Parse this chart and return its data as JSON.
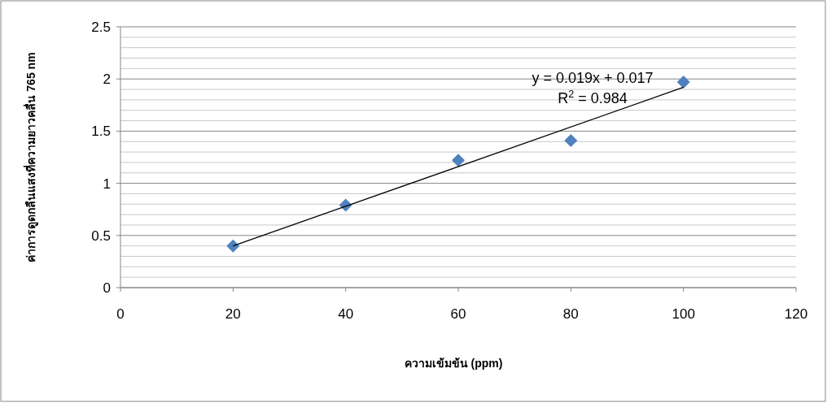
{
  "chart_data": {
    "type": "scatter",
    "xlabel": "ความเข้มข้น (ppm)",
    "ylabel": "ค่าการดูดกลืนแสงที่ความยาวคลื่น 765 nm",
    "x": [
      20,
      40,
      60,
      80,
      100
    ],
    "series": [
      {
        "color": "#4f81bd",
        "marker": "diamond",
        "values": [
          0.4,
          0.79,
          1.22,
          1.41,
          1.97
        ]
      },
      {
        "type": "line",
        "color": "#000000",
        "x": [
          20,
          100
        ],
        "values": [
          0.4,
          1.92
        ]
      }
    ],
    "xlim": [
      0,
      120
    ],
    "xticks": [
      0,
      20,
      40,
      60,
      80,
      100,
      120
    ],
    "ylim": [
      0,
      2.5
    ],
    "yticks": [
      0,
      0.5,
      1,
      1.5,
      2,
      2.5
    ],
    "grid": "y",
    "annotations": [
      "y = 0.019x + 0.017",
      "R$^{2}$ = 0.984"
    ]
  }
}
